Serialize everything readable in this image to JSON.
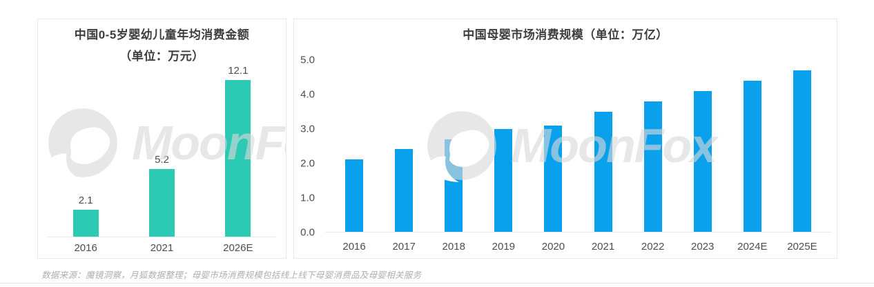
{
  "page": {
    "footer_note": "数据来源：魔镜洞察，月狐数据整理；母婴市场消费规模包括线上线下母婴消费品及母婴相关服务",
    "watermark_text": "MoonFox"
  },
  "colors": {
    "teal_bar": "#2CC9B4",
    "blue_bar": "#0AA1EC",
    "title_text": "#3D3D3D",
    "axis_text": "#4D4D4D",
    "watermark_gray": "#E0E0E0"
  },
  "chart_data": [
    {
      "type": "bar",
      "title": "中国0-5岁婴幼儿童年均消费金额",
      "subtitle": "（单位：万元）",
      "categories": [
        "2016",
        "2021",
        "2026E"
      ],
      "values": [
        2.1,
        5.2,
        12.1
      ],
      "value_labels": [
        "2.1",
        "5.2",
        "12.1"
      ],
      "bar_color": "#2CC9B4",
      "ylim": [
        0,
        13
      ],
      "grid": false,
      "legend": "none"
    },
    {
      "type": "bar",
      "title": "中国母婴市场消费规模（单位：万亿）",
      "categories": [
        "2016",
        "2017",
        "2018",
        "2019",
        "2020",
        "2021",
        "2022",
        "2023",
        "2024E",
        "2025E"
      ],
      "values": [
        2.1,
        2.4,
        2.7,
        3.0,
        3.1,
        3.5,
        3.8,
        4.1,
        4.4,
        4.7
      ],
      "bar_color": "#0AA1EC",
      "ylim": [
        0,
        5.0
      ],
      "yticks": [
        "0.0",
        "1.0",
        "2.0",
        "3.0",
        "4.0",
        "5.0"
      ],
      "grid": false,
      "legend": "none"
    }
  ]
}
